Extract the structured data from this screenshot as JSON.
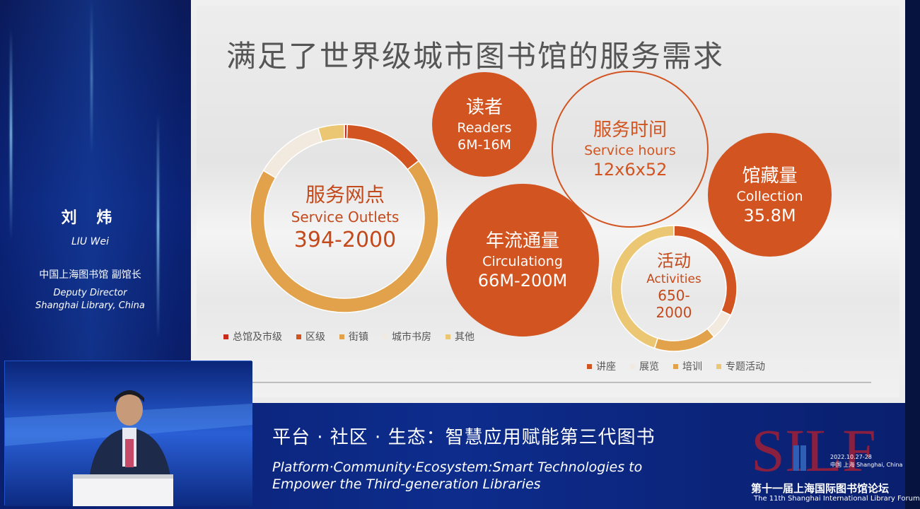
{
  "speaker": {
    "name_cn": "刘 炜",
    "name_en": "LIU Wei",
    "org_cn": "中国上海图书馆 副馆长",
    "role_en_line1": "Deputy Director",
    "role_en_line2": "Shanghai Library, China"
  },
  "slide": {
    "title": "满足了世界级城市图书馆的服务需求",
    "readers": {
      "cn": "读者",
      "en": "Readers",
      "value": "6M-16M"
    },
    "service_hours": {
      "cn": "服务时间",
      "en": "Service hours",
      "value": "12x6x52"
    },
    "collection": {
      "cn": "馆藏量",
      "en": "Collection",
      "value": "35.8M"
    },
    "circulation": {
      "cn": "年流通量",
      "en": "Circulationg",
      "value": "66M-200M"
    },
    "outlets": {
      "cn": "服务网点",
      "en": "Service Outlets",
      "value": "394-2000"
    },
    "activities": {
      "cn": "活动",
      "en": "Activities",
      "value_line1": "650-",
      "value_line2": "2000"
    },
    "outlets_legend": [
      "总馆及市级",
      "区级",
      "街镇",
      "城市书房",
      "其他"
    ],
    "activities_legend": [
      "讲座",
      "展览",
      "培训",
      "专题活动"
    ],
    "colors": {
      "accent": "#d25420",
      "light_orange": "#e2a14b",
      "cream": "#f3eadf",
      "yellow": "#ecc773",
      "dark_red": "#c62b1d"
    }
  },
  "chart_data": [
    {
      "type": "pie",
      "title": "服务网点",
      "categories": [
        "总馆及市级",
        "区级",
        "街镇",
        "城市书房",
        "其他"
      ],
      "values": [
        0.5,
        14,
        69,
        12,
        4.5
      ]
    },
    {
      "type": "pie",
      "title": "活动",
      "categories": [
        "讲座",
        "展览",
        "培训",
        "专题活动"
      ],
      "values": [
        32,
        7,
        16,
        45
      ]
    }
  ],
  "talk": {
    "title_cn": "平台 · 社区 · 生态：智慧应用赋能第三代图书",
    "title_en_line1": "Platform·Community·Ecosystem:Smart Technologies to",
    "title_en_line2": "Empower the Third-generation Libraries"
  },
  "forum": {
    "logo_text": "SILF",
    "date": "2022.10.27-28",
    "place": "中国 上海 Shanghai, China",
    "name_cn": "第十一届上海国际图书馆论坛",
    "name_en": "The 11th Shanghai International Library Forum"
  }
}
